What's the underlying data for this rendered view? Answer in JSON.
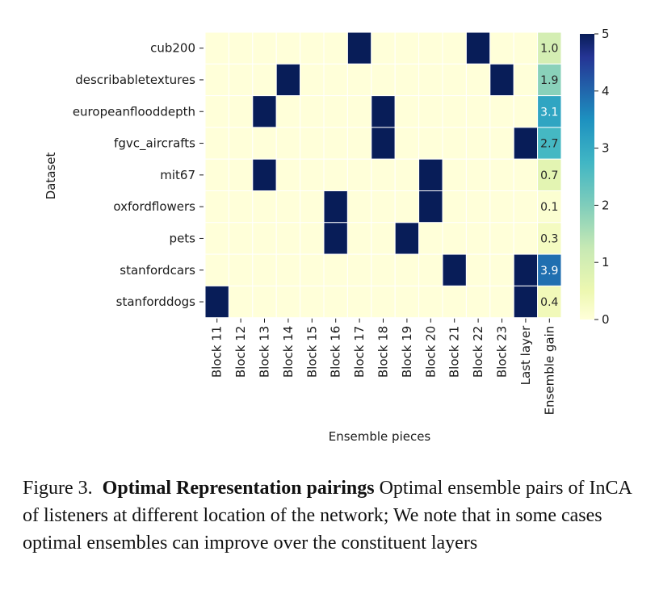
{
  "chart_data": {
    "type": "heatmap",
    "title": "",
    "xlabel": "Ensemble pieces",
    "ylabel": "Dataset",
    "columns": [
      "Block 11",
      "Block 12",
      "Block 13",
      "Block 14",
      "Block 15",
      "Block 16",
      "Block 17",
      "Block 18",
      "Block 19",
      "Block 20",
      "Block 21",
      "Block 22",
      "Block 23",
      "Last layer",
      "Ensemble gain"
    ],
    "rows": [
      "cub200",
      "describabletextures",
      "europeanflooddepth",
      "fgvc_aircrafts",
      "mit67",
      "oxfordflowers",
      "pets",
      "stanfordcars",
      "stanforddogs"
    ],
    "selected_pairs": [
      [
        "Block 17",
        "Block 22"
      ],
      [
        "Block 14",
        "Block 23"
      ],
      [
        "Block 13",
        "Block 18"
      ],
      [
        "Block 18",
        "Last layer"
      ],
      [
        "Block 13",
        "Block 20"
      ],
      [
        "Block 16",
        "Block 20"
      ],
      [
        "Block 16",
        "Block 19"
      ],
      [
        "Block 21",
        "Last layer"
      ],
      [
        "Block 11",
        "Last layer"
      ]
    ],
    "selected_value": 5,
    "ensemble_gain": [
      "1.0",
      "1.9",
      "3.1",
      "2.7",
      "0.7",
      "0.1",
      "0.3",
      "3.9",
      "0.4"
    ],
    "colorbar": {
      "min": 0,
      "max": 5,
      "ticks": [
        "0",
        "1",
        "2",
        "3",
        "4",
        "5"
      ],
      "colormap": "YlGnBu"
    }
  },
  "caption": {
    "prefix": "Figure 3.",
    "bold": "Optimal Representation pairings",
    "text": "Optimal ensemble pairs of InCA of listeners at different location of the network; We note that in some cases optimal ensembles can improve over the constituent layers"
  }
}
